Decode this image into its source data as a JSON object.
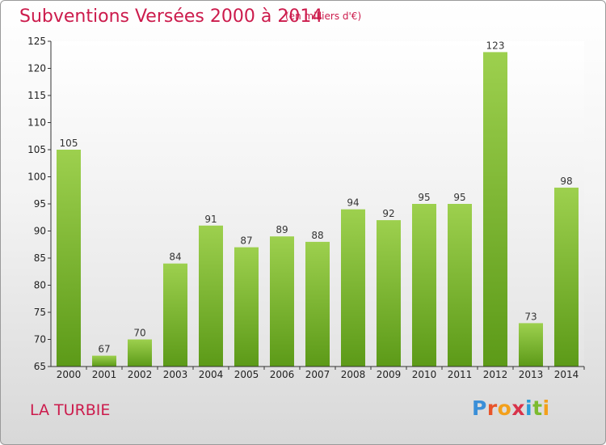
{
  "header": {
    "title": "Subventions Versées 2000 à 2014",
    "subtitle": "(en milliers d'€)"
  },
  "footer": {
    "commune": "LA TURBIE",
    "logo_text": "Proxiti",
    "logo_colors": [
      "#3a8fd8",
      "#e8542a",
      "#f3a01b",
      "#d8334a",
      "#2a9cd8",
      "#7cbb2e",
      "#f3a01b"
    ]
  },
  "chart_data": {
    "type": "bar",
    "title": "Subventions Versées 2000 à 2014",
    "subtitle": "(en milliers d'€)",
    "xlabel": "",
    "ylabel": "",
    "categories": [
      "2000",
      "2001",
      "2002",
      "2003",
      "2004",
      "2005",
      "2006",
      "2007",
      "2008",
      "2009",
      "2010",
      "2011",
      "2012",
      "2013",
      "2014"
    ],
    "values": [
      105,
      67,
      70,
      84,
      91,
      87,
      89,
      88,
      94,
      92,
      95,
      95,
      123,
      73,
      98
    ],
    "ylim": [
      65,
      125
    ],
    "yticks": [
      65,
      70,
      75,
      80,
      85,
      90,
      95,
      100,
      105,
      110,
      115,
      120,
      125
    ],
    "grid": false,
    "bar_color_top": "#9dd04e",
    "bar_color_bottom": "#5c9a18"
  }
}
